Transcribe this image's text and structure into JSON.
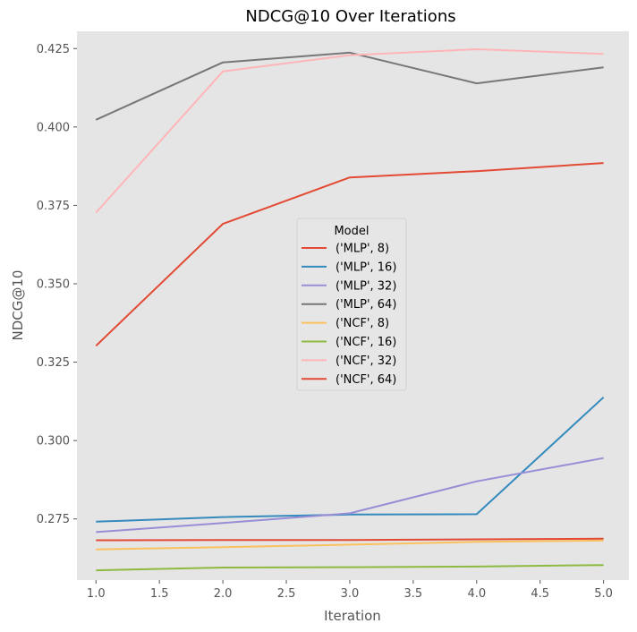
{
  "chart_data": {
    "type": "line",
    "title": "NDCG@10 Over Iterations",
    "xlabel": "Iteration",
    "ylabel": "NDCG@10",
    "xlim": [
      0.85,
      5.2
    ],
    "ylim": [
      0.2555,
      0.4305
    ],
    "xticks": [
      "1.0",
      "1.5",
      "2.0",
      "2.5",
      "3.0",
      "3.5",
      "4.0",
      "4.5",
      "5.0"
    ],
    "yticks": [
      "0.275",
      "0.300",
      "0.325",
      "0.350",
      "0.375",
      "0.400",
      "0.425"
    ],
    "grid": false,
    "legend_title": "Model",
    "legend_position": "center",
    "x": [
      1,
      2,
      3,
      4,
      5
    ],
    "series": [
      {
        "name": "('MLP', 8)",
        "color": "#E24A33",
        "values": [
          0.3302,
          0.3691,
          0.3839,
          0.3859,
          0.3885
        ]
      },
      {
        "name": "('MLP', 16)",
        "color": "#348ABD",
        "values": [
          0.2741,
          0.2756,
          0.2764,
          0.2765,
          0.3138
        ]
      },
      {
        "name": "('MLP', 32)",
        "color": "#988ED5",
        "values": [
          0.2708,
          0.2737,
          0.2768,
          0.287,
          0.2944
        ]
      },
      {
        "name": "('MLP', 64)",
        "color": "#777777",
        "values": [
          0.4023,
          0.4206,
          0.4237,
          0.4139,
          0.419
        ]
      },
      {
        "name": "('NCF', 8)",
        "color": "#FBC15E",
        "values": [
          0.2653,
          0.266,
          0.2668,
          0.2677,
          0.2681
        ]
      },
      {
        "name": "('NCF', 16)",
        "color": "#8EBA42",
        "values": [
          0.2586,
          0.2595,
          0.2596,
          0.2598,
          0.2603
        ]
      },
      {
        "name": "('NCF', 32)",
        "color": "#FFB5B8",
        "values": [
          0.3727,
          0.4177,
          0.4229,
          0.4248,
          0.4233
        ]
      },
      {
        "name": "('NCF', 64)",
        "color": "#E24A33",
        "values": [
          0.2682,
          0.2683,
          0.2683,
          0.2685,
          0.2687
        ]
      }
    ]
  }
}
